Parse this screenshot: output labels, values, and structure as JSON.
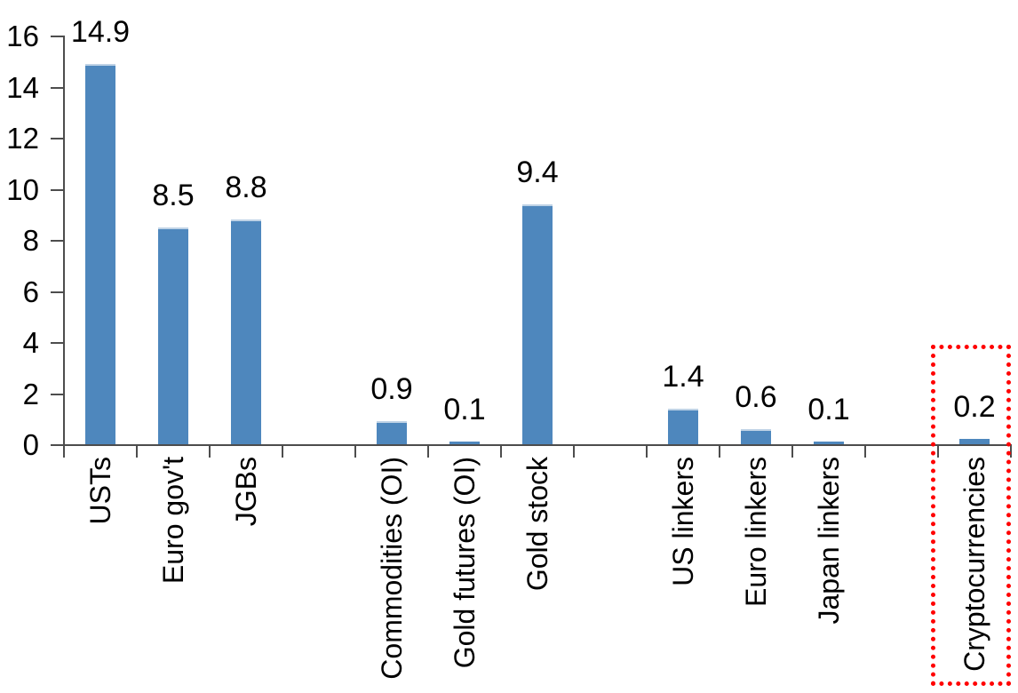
{
  "chart_data": {
    "type": "bar",
    "title": "",
    "xlabel": "",
    "ylabel": "",
    "categories": [
      "USTs",
      "Euro gov't",
      "JGBs",
      "",
      "Commodities (OI)",
      "Gold futures (OI)",
      "Gold stock",
      "",
      "US linkers",
      "Euro linkers",
      "Japan linkers",
      "",
      "Cryptocurrencies"
    ],
    "values": [
      14.9,
      8.5,
      8.8,
      null,
      0.9,
      0.1,
      9.4,
      null,
      1.4,
      0.6,
      0.1,
      null,
      0.2
    ],
    "data_labels": [
      "14.9",
      "8.5",
      "8.8",
      "",
      "0.9",
      "0.1",
      "9.4",
      "",
      "1.4",
      "0.6",
      "0.1",
      "",
      "0.2"
    ],
    "ylim": [
      0,
      16
    ],
    "ytick_labels": [
      "0",
      "2",
      "4",
      "6",
      "8",
      "10",
      "12",
      "14",
      "16"
    ],
    "grid": false,
    "legend": false,
    "bar_color": "#4E87BD",
    "bar_top_edge_color": "#BFD3E6",
    "axis_color": "#4d4d4d",
    "text_color": "#000000",
    "highlight": {
      "category": "Cryptocurrencies",
      "box_color": "#FF0000",
      "box_style": "dotted"
    }
  }
}
